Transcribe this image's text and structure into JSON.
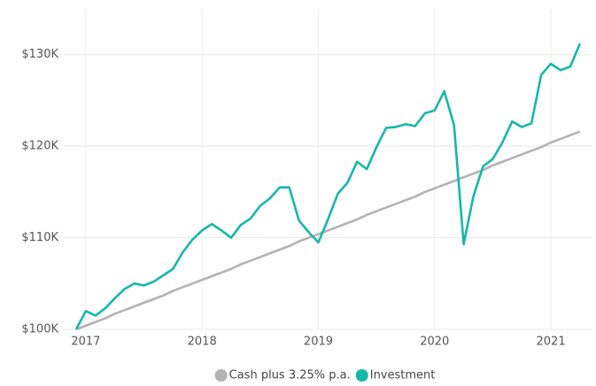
{
  "chart_data": {
    "type": "line",
    "x": [
      2016.917,
      2017.0,
      2017.083,
      2017.167,
      2017.25,
      2017.333,
      2017.417,
      2017.5,
      2017.583,
      2017.667,
      2017.75,
      2017.833,
      2017.917,
      2018.0,
      2018.083,
      2018.167,
      2018.25,
      2018.333,
      2018.417,
      2018.5,
      2018.583,
      2018.667,
      2018.75,
      2018.833,
      2018.917,
      2019.0,
      2019.083,
      2019.167,
      2019.25,
      2019.333,
      2019.417,
      2019.5,
      2019.583,
      2019.667,
      2019.75,
      2019.833,
      2019.917,
      2020.0,
      2020.083,
      2020.167,
      2020.25,
      2020.333,
      2020.417,
      2020.5,
      2020.583,
      2020.667,
      2020.75,
      2020.833,
      2020.917,
      2021.0,
      2021.083,
      2021.167,
      2021.25
    ],
    "series": [
      {
        "name": "Cash plus 3.25% p.a.",
        "color": "#b3b3b3",
        "values": [
          100000,
          100400,
          100800,
          101200,
          101700,
          102100,
          102500,
          102900,
          103300,
          103700,
          104200,
          104600,
          105000,
          105400,
          105800,
          106200,
          106600,
          107100,
          107500,
          107900,
          108300,
          108700,
          109100,
          109600,
          110000,
          110400,
          110800,
          111200,
          111600,
          112000,
          112500,
          112900,
          113300,
          113700,
          114100,
          114500,
          115000,
          115400,
          115800,
          116200,
          116600,
          117000,
          117400,
          117900,
          118300,
          118700,
          119100,
          119500,
          119900,
          120400,
          120800,
          121200,
          121600
        ]
      },
      {
        "name": "Investment",
        "color": "#14b8a6",
        "values": [
          100000,
          102000,
          101500,
          102300,
          103400,
          104400,
          105000,
          104800,
          105200,
          105900,
          106600,
          108400,
          109800,
          110800,
          111500,
          110800,
          110000,
          111400,
          112100,
          113500,
          114300,
          115500,
          115500,
          111900,
          110600,
          109500,
          112000,
          114800,
          116000,
          118300,
          117500,
          119900,
          122000,
          122100,
          122400,
          122200,
          123600,
          123900,
          126000,
          122300,
          109300,
          114500,
          117800,
          118600,
          120400,
          122700,
          122100,
          122500,
          127800,
          129000,
          128300,
          128700,
          131200
        ]
      }
    ],
    "xlim": [
      2016.917,
      2021.35
    ],
    "xticks": [
      2017,
      2018,
      2019,
      2020,
      2021
    ],
    "ylim": [
      100000,
      135000
    ],
    "yticks": [
      {
        "value": 100000,
        "label": "$100K"
      },
      {
        "value": 110000,
        "label": "$110K"
      },
      {
        "value": 120000,
        "label": "$120K"
      },
      {
        "value": 130000,
        "label": "$130K"
      }
    ],
    "grid": true,
    "legend": "bottom"
  }
}
